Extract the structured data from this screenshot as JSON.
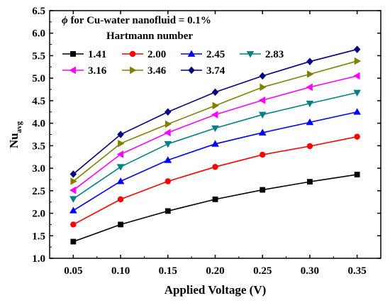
{
  "chart_data": {
    "type": "line",
    "xlabel": "Applied Voltage (V)",
    "ylabel": "Nu",
    "ylabel_sub": "avg",
    "xlim": [
      0.025,
      0.375
    ],
    "ylim": [
      1.0,
      6.5
    ],
    "x_ticks": [
      "0.05",
      "0.10",
      "0.15",
      "0.20",
      "0.25",
      "0.30",
      "0.35"
    ],
    "y_ticks": [
      "1.0",
      "1.5",
      "2.0",
      "2.5",
      "3.0",
      "3.5",
      "4.0",
      "4.5",
      "5.0",
      "5.5",
      "6.0",
      "6.5"
    ],
    "annotation_symbol": "ϕ",
    "annotation": " for Cu-water nanofluid = 0.1%",
    "legend_title": "Hartmann number",
    "legend_position": "top-left",
    "x": [
      0.05,
      0.1,
      0.15,
      0.2,
      0.25,
      0.3,
      0.35
    ],
    "series": [
      {
        "name": "1.41",
        "color": "#000000",
        "marker": "square",
        "values": [
          1.37,
          1.75,
          2.05,
          2.31,
          2.52,
          2.7,
          2.86
        ]
      },
      {
        "name": "2.00",
        "color": "#ff0000",
        "marker": "circle",
        "values": [
          1.75,
          2.31,
          2.71,
          3.03,
          3.3,
          3.49,
          3.7
        ]
      },
      {
        "name": "2.45",
        "color": "#0000ff",
        "marker": "triangle-up",
        "values": [
          2.06,
          2.71,
          3.18,
          3.54,
          3.79,
          4.02,
          4.25
        ]
      },
      {
        "name": "2.83",
        "color": "#008080",
        "marker": "triangle-down",
        "values": [
          2.32,
          3.03,
          3.54,
          3.89,
          4.19,
          4.44,
          4.68
        ]
      },
      {
        "name": "3.16",
        "color": "#ff00ff",
        "marker": "triangle-left",
        "values": [
          2.51,
          3.31,
          3.79,
          4.19,
          4.51,
          4.8,
          5.05
        ]
      },
      {
        "name": "3.46",
        "color": "#808000",
        "marker": "triangle-right",
        "values": [
          2.71,
          3.55,
          3.98,
          4.39,
          4.8,
          5.09,
          5.38
        ]
      },
      {
        "name": "3.74",
        "color": "#000080",
        "marker": "diamond",
        "values": [
          2.87,
          3.75,
          4.25,
          4.69,
          5.05,
          5.37,
          5.64
        ]
      }
    ]
  }
}
